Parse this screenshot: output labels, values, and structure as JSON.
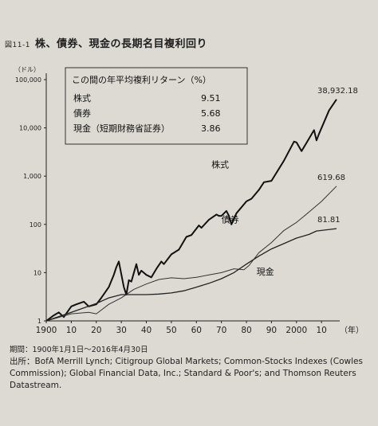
{
  "figure": {
    "number": "図11-1",
    "title": "株、債券、現金の長期名目複利回り"
  },
  "notes": {
    "period": "期間：1900年1月1日～2016年4月30日",
    "source": "出所：BofA Merrill Lynch; Citigroup Global Markets; Common-Stocks Indexes (Cowles Commission); Global Financial Data, Inc.; Standard & Poor's; and Thomson Reuters Datastream."
  },
  "chart_data": {
    "type": "line",
    "ylabel": "（ドル）",
    "yscale": "log",
    "ylim": [
      1,
      100000
    ],
    "yticks": [
      1,
      10,
      100,
      1000,
      10000,
      100000
    ],
    "ytick_labels": [
      "1",
      "10",
      "100",
      "1,000",
      "10,000",
      "100,000"
    ],
    "xlim": [
      1900,
      2016
    ],
    "xticks": [
      1900,
      1910,
      1920,
      1930,
      1940,
      1950,
      1960,
      1970,
      1980,
      1990,
      2000,
      2010
    ],
    "xtick_labels": [
      "1900",
      "10",
      "20",
      "30",
      "40",
      "50",
      "60",
      "70",
      "80",
      "90",
      "2000",
      "10"
    ],
    "xunit": "（年）",
    "grid": false,
    "legend_box": {
      "title": "この間の年平均複利リターン（%）",
      "rows": [
        {
          "label": "株式",
          "value": "9.51"
        },
        {
          "label": "債券",
          "value": "5.68"
        },
        {
          "label": "現金（短期財務省証券）",
          "value": "3.86"
        }
      ]
    },
    "series": [
      {
        "name": "株式",
        "end_label": "38,932.18",
        "color": "#111111",
        "x": [
          1900,
          1903,
          1905,
          1907,
          1910,
          1912,
          1915,
          1917,
          1920,
          1922,
          1925,
          1927,
          1928,
          1929,
          1931,
          1932,
          1933,
          1934,
          1936,
          1937,
          1938,
          1940,
          1942,
          1944,
          1946,
          1947,
          1950,
          1953,
          1956,
          1958,
          1961,
          1962,
          1965,
          1968,
          1969,
          1970,
          1972,
          1973,
          1974,
          1976,
          1980,
          1982,
          1985,
          1987,
          1990,
          1995,
          1999,
          2000,
          2002,
          2003,
          2007,
          2008,
          2009,
          2013,
          2016
        ],
        "y": [
          1,
          1.3,
          1.5,
          1.2,
          2,
          2.2,
          2.5,
          2,
          2.2,
          3,
          5,
          9,
          13,
          17,
          5,
          3.5,
          7,
          6.5,
          15,
          9,
          11,
          9,
          8,
          12,
          17,
          15,
          24,
          30,
          55,
          60,
          95,
          85,
          125,
          160,
          150,
          150,
          190,
          150,
          100,
          170,
          300,
          340,
          520,
          750,
          800,
          2100,
          5200,
          5000,
          3300,
          4000,
          9000,
          5500,
          7500,
          23000,
          38932.18
        ]
      },
      {
        "name": "債券",
        "end_label": "619.68",
        "color": "#333333",
        "x": [
          1900,
          1910,
          1917,
          1920,
          1925,
          1930,
          1935,
          1940,
          1945,
          1950,
          1955,
          1960,
          1965,
          1970,
          1975,
          1979,
          1981,
          1985,
          1990,
          1995,
          2000,
          2005,
          2010,
          2016
        ],
        "y": [
          1,
          1.4,
          1.5,
          1.4,
          2.2,
          3.0,
          4.5,
          5.8,
          7.2,
          7.8,
          7.5,
          8,
          9,
          10,
          12,
          11.5,
          14,
          26,
          42,
          75,
          110,
          180,
          300,
          619.68
        ]
      },
      {
        "name": "現金",
        "end_label": "81.81",
        "color": "#222222",
        "x": [
          1900,
          1910,
          1920,
          1925,
          1930,
          1935,
          1940,
          1945,
          1950,
          1955,
          1960,
          1965,
          1970,
          1975,
          1980,
          1985,
          1990,
          1995,
          2000,
          2005,
          2008,
          2016
        ],
        "y": [
          1,
          1.5,
          2.3,
          3,
          3.5,
          3.5,
          3.5,
          3.6,
          3.8,
          4.2,
          5,
          6,
          7.5,
          10,
          15,
          22,
          31,
          40,
          52,
          62,
          73,
          81.81
        ]
      }
    ]
  }
}
